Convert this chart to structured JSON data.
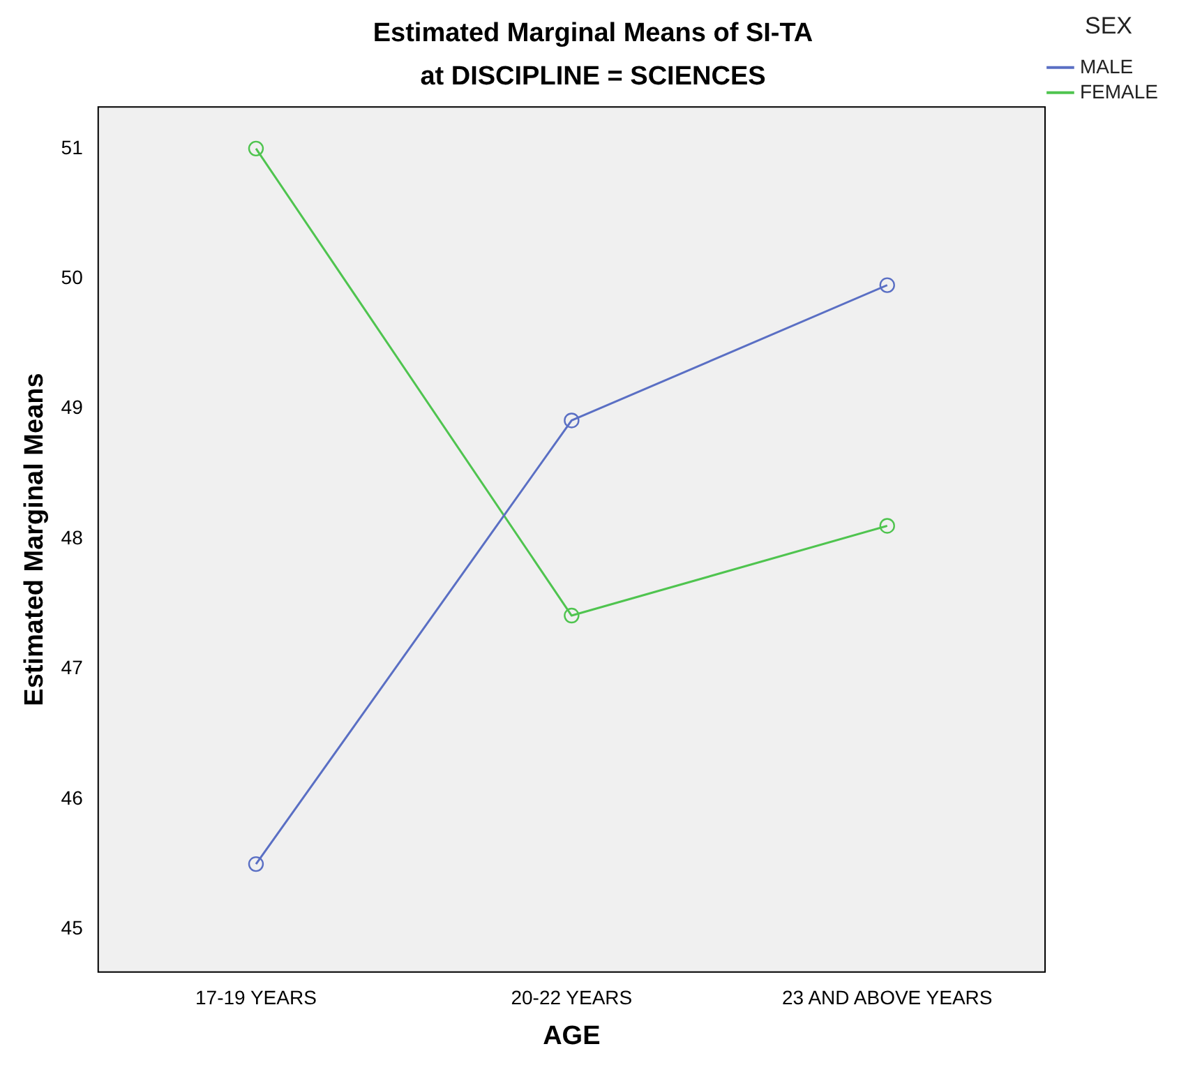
{
  "chart_data": {
    "type": "line",
    "title": "Estimated Marginal Means of SI-TA",
    "subtitle": "at DISCIPLINE = SCIENCES",
    "xlabel": "AGE",
    "ylabel": "Estimated Marginal Means",
    "legend_title": "SEX",
    "categories": [
      "17-19 YEARS",
      "20-22 YEARS",
      "23 AND ABOVE YEARS"
    ],
    "series": [
      {
        "name": "MALE",
        "color": "#5a6fc4",
        "values": [
          45.5,
          48.91,
          49.95
        ]
      },
      {
        "name": "FEMALE",
        "color": "#4fc44f",
        "values": [
          51.0,
          47.41,
          48.1
        ]
      }
    ],
    "ylim": [
      44.67,
      51.32
    ],
    "yticks": [
      45,
      46,
      47,
      48,
      49,
      50,
      51
    ],
    "grid": false,
    "legend": "top right",
    "marker": "circle",
    "line_style": "solid"
  }
}
